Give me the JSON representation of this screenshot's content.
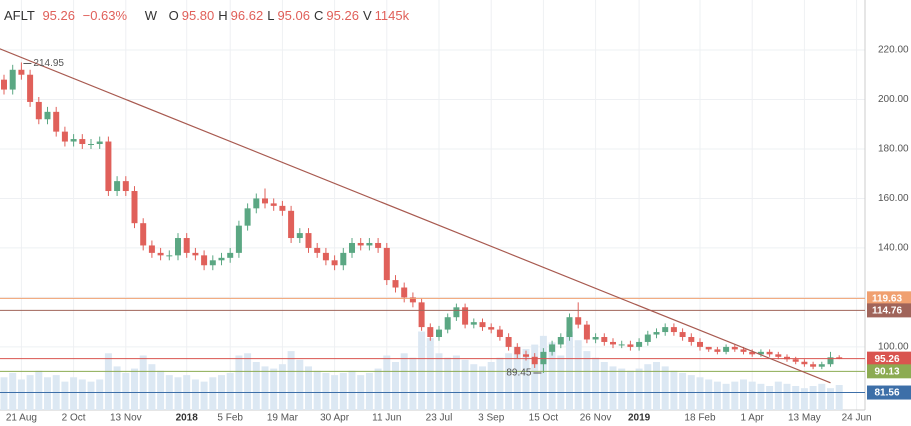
{
  "chart_data": {
    "type": "candlestick",
    "header": {
      "symbol": "AFLT",
      "price": "95.26",
      "change": "−0.63%",
      "interval": "W",
      "fields": [
        {
          "key": "O",
          "value": "95.80"
        },
        {
          "key": "H",
          "value": "96.62"
        },
        {
          "key": "L",
          "value": "95.06"
        },
        {
          "key": "C",
          "value": "95.26"
        },
        {
          "key": "V",
          "value": "1145k"
        }
      ]
    },
    "categories": [
      null,
      null,
      "21 Aug",
      null,
      null,
      null,
      null,
      null,
      "2 Oct",
      null,
      null,
      null,
      null,
      null,
      "13 Nov",
      null,
      null,
      null,
      null,
      null,
      null,
      "2018",
      null,
      null,
      null,
      null,
      "5 Feb",
      null,
      null,
      null,
      null,
      null,
      "19 Mar",
      null,
      null,
      null,
      null,
      null,
      "30 Apr",
      null,
      null,
      null,
      null,
      null,
      "11 Jun",
      null,
      null,
      null,
      null,
      null,
      "23 Jul",
      null,
      null,
      null,
      null,
      null,
      "3 Sep",
      null,
      null,
      null,
      null,
      null,
      "15 Oct",
      null,
      null,
      null,
      null,
      null,
      "26 Nov",
      null,
      null,
      null,
      null,
      "2019",
      null,
      null,
      null,
      null,
      null,
      null,
      "18 Feb",
      null,
      null,
      null,
      null,
      null,
      "1 Apr",
      null,
      null,
      null,
      null,
      null,
      "13 May",
      null,
      null,
      null,
      null,
      null,
      "24 Jun"
    ],
    "open": [
      208,
      204,
      212,
      210,
      199,
      192,
      195,
      187,
      183,
      184,
      182,
      182,
      183,
      163,
      167,
      163,
      150,
      141,
      138,
      137,
      137,
      144,
      138,
      137,
      133,
      135,
      136,
      138,
      149,
      156,
      160,
      158,
      157,
      155,
      144,
      146,
      140,
      138,
      135,
      133,
      138,
      142,
      141,
      142,
      140,
      127,
      124,
      120,
      118,
      108,
      104,
      107,
      112,
      116,
      109,
      110,
      108,
      107,
      104,
      100,
      97,
      96,
      93,
      98,
      101,
      104,
      112,
      109,
      103,
      104,
      102,
      101,
      101,
      100,
      102,
      105,
      106,
      108,
      106,
      104,
      102,
      100,
      99,
      98,
      100,
      99,
      98,
      97,
      98,
      97,
      96,
      95,
      94,
      93,
      92,
      93,
      95.8,
      null,
      null
    ],
    "high": [
      210,
      214,
      214.95,
      212,
      201,
      197,
      197,
      189,
      186,
      186,
      184,
      185,
      185,
      169,
      169,
      165,
      152,
      143,
      140,
      139,
      146,
      146,
      140,
      139,
      137,
      138,
      140,
      151,
      158,
      162,
      164,
      160,
      159,
      157,
      148,
      148,
      142,
      140,
      137,
      140,
      144,
      144,
      144,
      144,
      142,
      129,
      126,
      122,
      119.5,
      109.5,
      108.5,
      113.5,
      117.5,
      117.5,
      111.5,
      111.5,
      109.5,
      108.5,
      105.5,
      101.5,
      98.5,
      97.5,
      99.5,
      102.5,
      105.5,
      113.5,
      118,
      110.5,
      105.5,
      105.5,
      103.5,
      102.5,
      102.5,
      103.5,
      106.5,
      107.5,
      109.5,
      109.5,
      107.5,
      105.5,
      103.5,
      100,
      100,
      101,
      101,
      100,
      99,
      99,
      99,
      98,
      97,
      96,
      95,
      94,
      94,
      98,
      96.62,
      null,
      null
    ],
    "low": [
      202,
      202,
      208,
      197,
      190,
      190,
      185,
      181,
      181,
      180,
      180,
      180,
      161,
      161,
      161,
      148,
      139,
      136,
      135,
      135,
      135,
      136,
      135,
      131,
      131,
      133,
      134,
      136,
      147,
      154,
      156,
      155,
      153,
      142,
      142,
      138,
      136,
      133,
      131,
      131,
      136,
      139,
      139,
      138,
      125,
      122,
      118,
      116,
      106.5,
      102.5,
      102.5,
      105.5,
      110.5,
      107.5,
      107.5,
      106.5,
      105.5,
      102.5,
      98.5,
      95.5,
      94.5,
      91.5,
      89.45,
      96.5,
      99.5,
      102.5,
      107.5,
      101.5,
      101.5,
      100.5,
      99.5,
      99.5,
      98.5,
      98.5,
      100.5,
      103.5,
      104.5,
      104.5,
      102.5,
      100.5,
      98.5,
      98,
      97,
      97,
      98,
      97,
      96,
      96,
      96,
      95,
      94,
      93,
      92,
      91,
      91,
      92,
      95.06,
      null,
      null
    ],
    "close": [
      204,
      212,
      210,
      199,
      192,
      195,
      187,
      183,
      184,
      182,
      182,
      183,
      163,
      167,
      163,
      150,
      141,
      138,
      137,
      137,
      144,
      138,
      137,
      133,
      135,
      136,
      138,
      149,
      156,
      160,
      158,
      157,
      155,
      144,
      146,
      140,
      138,
      135,
      133,
      138,
      142,
      141,
      142,
      140,
      127,
      124,
      120,
      118,
      108,
      104,
      107,
      112,
      116,
      109,
      110,
      108,
      107,
      104,
      100,
      97,
      96,
      93,
      98,
      101,
      104,
      112,
      109,
      103,
      104,
      102,
      101,
      101,
      100,
      102,
      105,
      106,
      108,
      106,
      104,
      102,
      100,
      99,
      98,
      100,
      99,
      98,
      97,
      98,
      97,
      96,
      95,
      94,
      93,
      92,
      93,
      95.8,
      95.26,
      null,
      null
    ],
    "volume": [
      1500,
      1700,
      1400,
      1600,
      1800,
      1500,
      1600,
      1300,
      1500,
      1400,
      1300,
      1400,
      2600,
      2000,
      1700,
      1900,
      2500,
      2100,
      1800,
      1600,
      1500,
      1600,
      1400,
      1300,
      1500,
      1600,
      1700,
      2500,
      2600,
      2200,
      2000,
      1900,
      2100,
      2700,
      2300,
      2000,
      1800,
      1700,
      1600,
      1700,
      1800,
      1600,
      1700,
      1900,
      2500,
      2200,
      2600,
      2400,
      3600,
      3300,
      2600,
      2400,
      2500,
      2300,
      2100,
      2000,
      2200,
      2400,
      2600,
      2900,
      2800,
      3000,
      3400,
      3100,
      2500,
      3600,
      3200,
      2700,
      2400,
      2200,
      2000,
      1900,
      1800,
      1900,
      2100,
      2200,
      2000,
      1800,
      1700,
      1600,
      1500,
      1400,
      1300,
      1200,
      1300,
      1400,
      1300,
      1200,
      1100,
      1300,
      1200,
      1100,
      1000,
      1100,
      1200,
      1000,
      1145,
      null,
      null
    ],
    "volume_lim": [
      0,
      18800
    ],
    "up_color": "#5ba783",
    "down_color": "#e0605a",
    "volume_color": "#dce8f3",
    "ylim": [
      74.5,
      240.2
    ],
    "yticks": [
      {
        "value": 100,
        "label": "100.00"
      },
      {
        "value": 120,
        "label": "120.00"
      },
      {
        "value": 140,
        "label": "140.00"
      },
      {
        "value": 160,
        "label": "160.00"
      },
      {
        "value": 180,
        "label": "180.00"
      },
      {
        "value": 200,
        "label": "200.00"
      },
      {
        "value": 220,
        "label": "220.00"
      }
    ],
    "grid": true,
    "trend_line": {
      "x": [
        -0.5,
        95
      ],
      "values": [
        220.5,
        85.5
      ],
      "color": "#a85a50"
    },
    "levels": [
      {
        "value": 119.63,
        "color": "#f0a070"
      },
      {
        "value": 114.76,
        "color": "#a0645a"
      },
      {
        "value": 95.26,
        "color": "#d9544f"
      },
      {
        "value": 90.13,
        "color": "#8cab52"
      },
      {
        "value": 81.56,
        "color": "#3d6fa8"
      }
    ],
    "annotations": [
      {
        "index": 2,
        "ref": "high"
      },
      {
        "index": 62,
        "ref": "low"
      }
    ]
  }
}
